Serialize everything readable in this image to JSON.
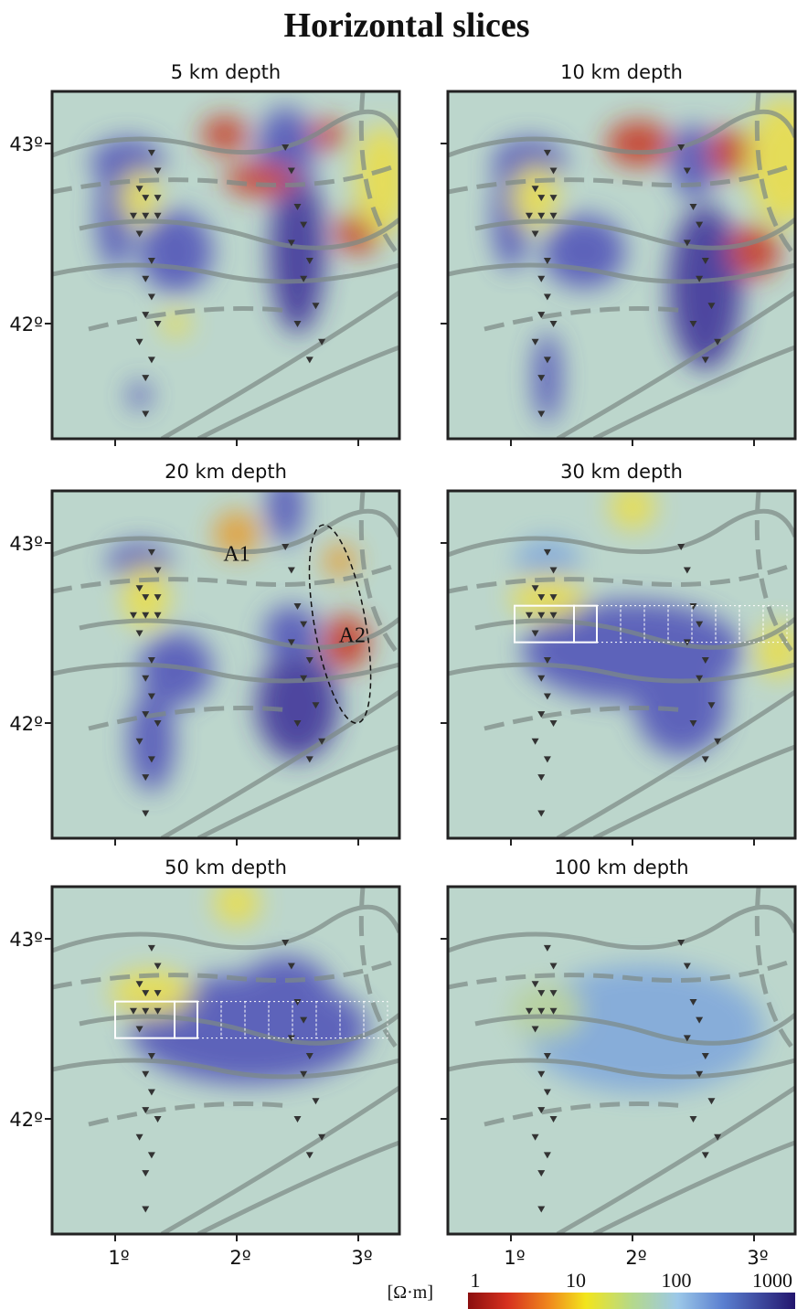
{
  "title": "Horizontal slices",
  "panels": [
    {
      "title": "5 km depth"
    },
    {
      "title": "10 km depth"
    },
    {
      "title": "20 km depth"
    },
    {
      "title": "30 km depth"
    },
    {
      "title": "50 km depth"
    },
    {
      "title": "100 km depth"
    }
  ],
  "y_ticks": [
    "43º",
    "42º"
  ],
  "x_ticks": [
    "1º",
    "2º",
    "3º"
  ],
  "annotations": [
    "A1",
    "A2"
  ],
  "colorbar": {
    "unit": "[Ω·m]",
    "labels": [
      "1",
      "10",
      "100",
      "1000"
    ]
  }
}
